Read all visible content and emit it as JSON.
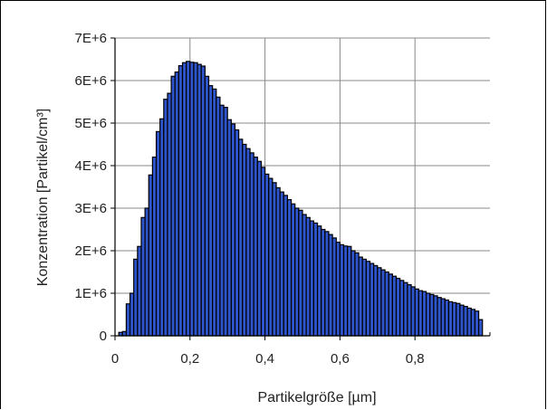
{
  "chart_data": {
    "type": "bar",
    "title": "",
    "xlabel": "Partikelgröße [µm]",
    "ylabel": "Konzentration [Partikel/cm³]",
    "xlim": [
      0,
      1.0
    ],
    "ylim": [
      0,
      7000000
    ],
    "grid": true,
    "legend": "none",
    "x_ticks": [
      0,
      0.2,
      0.4,
      0.6,
      0.8
    ],
    "x_tick_labels": [
      "0",
      "0,2",
      "0,4",
      "0,6",
      "0,8"
    ],
    "y_ticks": [
      0,
      1000000,
      2000000,
      3000000,
      4000000,
      5000000,
      6000000,
      7000000
    ],
    "y_tick_labels": [
      "0",
      "1E+6",
      "2E+6",
      "3E+6",
      "4E+6",
      "5E+6",
      "6E+6",
      "7E+6"
    ],
    "bar_color": "#2f55cc",
    "bin_width": 0.01,
    "x": [
      0.02,
      0.03,
      0.04,
      0.05,
      0.06,
      0.07,
      0.08,
      0.09,
      0.1,
      0.11,
      0.12,
      0.13,
      0.14,
      0.15,
      0.16,
      0.17,
      0.18,
      0.19,
      0.2,
      0.21,
      0.22,
      0.23,
      0.24,
      0.25,
      0.26,
      0.27,
      0.28,
      0.29,
      0.3,
      0.31,
      0.32,
      0.33,
      0.34,
      0.35,
      0.36,
      0.37,
      0.38,
      0.39,
      0.4,
      0.41,
      0.42,
      0.43,
      0.44,
      0.45,
      0.46,
      0.47,
      0.48,
      0.49,
      0.5,
      0.51,
      0.52,
      0.53,
      0.54,
      0.55,
      0.56,
      0.57,
      0.58,
      0.59,
      0.6,
      0.61,
      0.62,
      0.63,
      0.64,
      0.65,
      0.66,
      0.67,
      0.68,
      0.69,
      0.7,
      0.71,
      0.72,
      0.73,
      0.74,
      0.75,
      0.76,
      0.77,
      0.78,
      0.79,
      0.8,
      0.81,
      0.82,
      0.83,
      0.84,
      0.85,
      0.86,
      0.87,
      0.88,
      0.89,
      0.9,
      0.91,
      0.92,
      0.93,
      0.94,
      0.95,
      0.96,
      0.97,
      0.98
    ],
    "values": [
      80000,
      100000,
      750000,
      1000000,
      1800000,
      2100000,
      2780000,
      3000000,
      3780000,
      4200000,
      4800000,
      5100000,
      5560000,
      5700000,
      6100000,
      6200000,
      6350000,
      6420000,
      6450000,
      6430000,
      6420000,
      6380000,
      6340000,
      6100000,
      5880000,
      5800000,
      5610000,
      5420000,
      5370000,
      5080000,
      4980000,
      4840000,
      4620000,
      4500000,
      4400000,
      4300000,
      4200000,
      4100000,
      3960000,
      3800000,
      3700000,
      3600000,
      3480000,
      3380000,
      3300000,
      3200000,
      3100000,
      3000000,
      2950000,
      2850000,
      2780000,
      2700000,
      2650000,
      2580000,
      2500000,
      2450000,
      2380000,
      2300000,
      2200000,
      2140000,
      2110000,
      2100000,
      2000000,
      1950000,
      1850000,
      1800000,
      1750000,
      1700000,
      1650000,
      1600000,
      1550000,
      1500000,
      1450000,
      1400000,
      1350000,
      1300000,
      1250000,
      1200000,
      1150000,
      1100000,
      1060000,
      1040000,
      1000000,
      970000,
      940000,
      900000,
      870000,
      840000,
      800000,
      780000,
      760000,
      720000,
      690000,
      650000,
      620000,
      580000,
      380000
    ]
  }
}
